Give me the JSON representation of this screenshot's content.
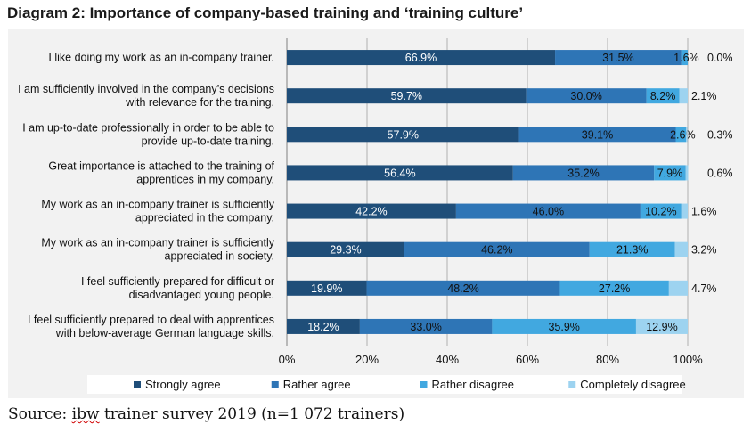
{
  "title": "Diagram 2: Importance of company-based training and ‘training culture’",
  "source": {
    "prefix": "Source: ",
    "org": "ibw",
    "rest": " trainer survey 2019 (n=1 072 trainers)"
  },
  "chart_data": {
    "type": "bar",
    "orientation": "horizontal",
    "stacked": true,
    "xlim": [
      0,
      100
    ],
    "x_ticks": [
      "0%",
      "20%",
      "40%",
      "60%",
      "80%",
      "100%"
    ],
    "grid": true,
    "legend_position": "bottom",
    "categories": [
      [
        "I like doing my work as an in-company trainer."
      ],
      [
        "I am sufficiently involved in the company’s decisions",
        "with relevance for the training."
      ],
      [
        "I am up-to-date professionally in order to be able to",
        "provide up-to-date training."
      ],
      [
        "Great importance is attached to the training of",
        "apprentices in my company."
      ],
      [
        "My work as an in-company trainer is sufficiently",
        "appreciated in the company."
      ],
      [
        "My work as an in-company trainer is sufficiently",
        "appreciated in society."
      ],
      [
        "I feel sufficiently prepared for difficult or",
        "disadvantaged young people."
      ],
      [
        "I feel sufficiently prepared to deal with apprentices",
        "with below-average German language skills."
      ]
    ],
    "series": [
      {
        "name": "Strongly agree",
        "color": "#1f4e79",
        "values": [
          66.9,
          59.7,
          57.9,
          56.4,
          42.2,
          29.3,
          19.9,
          18.2
        ],
        "labels": [
          "66.9%",
          "59.7%",
          "57.9%",
          "56.4%",
          "42.2%",
          "29.3%",
          "19.9%",
          "18.2%"
        ]
      },
      {
        "name": "Rather agree",
        "color": "#2e75b6",
        "values": [
          31.5,
          30.0,
          39.1,
          35.2,
          46.0,
          46.2,
          48.2,
          33.0
        ],
        "labels": [
          "31.5%",
          "30.0%",
          "39.1%",
          "35.2%",
          "46.0%",
          "46.2%",
          "48.2%",
          "33.0%"
        ]
      },
      {
        "name": "Rather disagree",
        "color": "#41a8e0",
        "values": [
          1.6,
          8.2,
          2.6,
          7.9,
          10.2,
          21.3,
          27.2,
          35.9
        ],
        "labels": [
          "1.6%",
          "8.2%",
          "2.6%",
          "7.9%",
          "10.2%",
          "21.3%",
          "27.2%",
          "35.9%"
        ]
      },
      {
        "name": "Completely disagree",
        "color": "#9dd3f0",
        "values": [
          0.0,
          2.1,
          0.3,
          0.6,
          1.6,
          3.2,
          4.7,
          12.9
        ],
        "labels": [
          "0.0%",
          "2.1%",
          "0.3%",
          "0.6%",
          "1.6%",
          "3.2%",
          "4.7%",
          "12.9%"
        ]
      }
    ]
  }
}
